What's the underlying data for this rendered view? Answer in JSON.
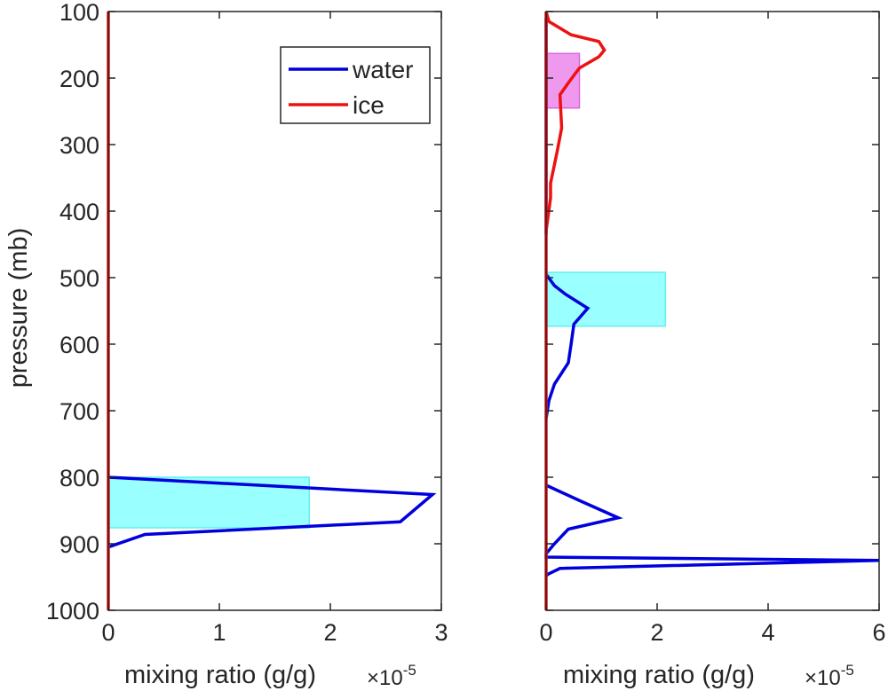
{
  "figure": {
    "ylabel": "pressure (mb)",
    "background": "#ffffff"
  },
  "chart_data": [
    {
      "type": "line",
      "xlabel": "mixing ratio (g/g)",
      "x_exponent_label": "×10",
      "x_exponent_power": "-5",
      "ylabel": "pressure (mb)",
      "xlim": [
        0,
        3
      ],
      "ylim": [
        100,
        1000
      ],
      "y_reversed": true,
      "xticks": [
        0,
        1,
        2,
        3
      ],
      "xtick_labels": [
        "0",
        "1",
        "2",
        "3"
      ],
      "yticks": [
        100,
        200,
        300,
        400,
        500,
        600,
        700,
        800,
        900,
        1000
      ],
      "ytick_labels": [
        "100",
        "200",
        "300",
        "400",
        "500",
        "600",
        "700",
        "800",
        "900",
        "1000"
      ],
      "legend": {
        "placement": "top-right",
        "entries": [
          {
            "label": "water",
            "color": "#0000dd"
          },
          {
            "label": "ice",
            "color": "#ee1111"
          }
        ]
      },
      "series": [
        {
          "name": "water",
          "color": "#0000dd",
          "points": [
            [
              0,
              800
            ],
            [
              2.92,
              826
            ],
            [
              2.63,
              867
            ],
            [
              0.33,
              886
            ],
            [
              0,
              905
            ]
          ]
        },
        {
          "name": "ice",
          "color": "#ee1111",
          "points": [
            [
              0,
              100
            ],
            [
              0,
              1000
            ]
          ]
        }
      ],
      "boxes": [
        {
          "x0": 0,
          "x1": 1.81,
          "y0": 800,
          "y1": 876,
          "fill": "#99ffff",
          "stroke": "#66eeee"
        }
      ]
    },
    {
      "type": "line",
      "xlabel": "mixing ratio (g/g)",
      "x_exponent_label": "×10",
      "x_exponent_power": "-5",
      "xlim": [
        0,
        6
      ],
      "ylim": [
        100,
        1000
      ],
      "y_reversed": true,
      "xticks": [
        0,
        2,
        4,
        6
      ],
      "xtick_labels": [
        "0",
        "2",
        "4",
        "6"
      ],
      "yticks": [
        100,
        200,
        300,
        400,
        500,
        600,
        700,
        800,
        900,
        1000
      ],
      "series": [
        {
          "name": "water",
          "color": "#0000dd",
          "segments": [
            [
              [
                0,
                110
              ],
              [
                0,
                435
              ]
            ],
            [
              [
                0,
                495
              ],
              [
                0.15,
                512
              ],
              [
                0.35,
                525
              ],
              [
                0.75,
                546
              ],
              [
                0.5,
                570
              ],
              [
                0.45,
                600
              ],
              [
                0.4,
                628
              ],
              [
                0.15,
                660
              ],
              [
                0.05,
                685
              ],
              [
                0,
                712
              ]
            ],
            [
              [
                0,
                812
              ],
              [
                0.6,
                835
              ],
              [
                1.3,
                861
              ],
              [
                0.4,
                878
              ],
              [
                0.15,
                900
              ],
              [
                0,
                915
              ],
              [
                0,
                920
              ],
              [
                6.0,
                925
              ],
              [
                0.25,
                937
              ],
              [
                0.05,
                945
              ],
              [
                0,
                948
              ]
            ]
          ]
        },
        {
          "name": "ice",
          "color": "#ee1111",
          "segments": [
            [
              [
                0,
                100
              ],
              [
                0.05,
                115
              ],
              [
                0.45,
                135
              ],
              [
                0.95,
                145
              ],
              [
                1.05,
                158
              ],
              [
                0.95,
                168
              ],
              [
                0.6,
                185
              ],
              [
                0.42,
                205
              ],
              [
                0.25,
                225
              ],
              [
                0.28,
                275
              ],
              [
                0.2,
                310
              ],
              [
                0.08,
                358
              ],
              [
                0.08,
                380
              ],
              [
                0,
                430
              ]
            ],
            [
              [
                0,
                100
              ],
              [
                0,
                1000
              ]
            ]
          ]
        }
      ],
      "boxes": [
        {
          "x0": 0,
          "x1": 0.6,
          "y0": 163,
          "y1": 245,
          "fill": "#ee99ee",
          "stroke": "#dd66dd"
        },
        {
          "x0": 0,
          "x1": 2.15,
          "y0": 492,
          "y1": 573,
          "fill": "#99ffff",
          "stroke": "#66eeee"
        }
      ]
    }
  ]
}
